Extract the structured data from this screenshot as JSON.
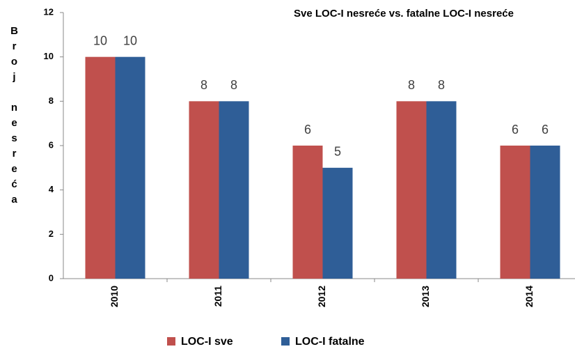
{
  "chart_data": {
    "type": "bar",
    "title": "Sve LOC-I nesreće vs. fatalne LOC-I nesreće",
    "y_label": "Broj nesreća",
    "categories": [
      "2010",
      "2011",
      "2012",
      "2013",
      "2014"
    ],
    "series": [
      {
        "name": "LOC-I sve",
        "color": "#c0504d",
        "values": [
          10,
          8,
          6,
          8,
          6
        ]
      },
      {
        "name": "LOC-I fatalne",
        "color": "#2f5e97",
        "values": [
          10,
          8,
          5,
          8,
          6
        ]
      }
    ],
    "ylim": [
      0,
      12
    ],
    "yticks": [
      0,
      2,
      4,
      6,
      8,
      10,
      12
    ],
    "grid": false,
    "legend": "bottom"
  }
}
